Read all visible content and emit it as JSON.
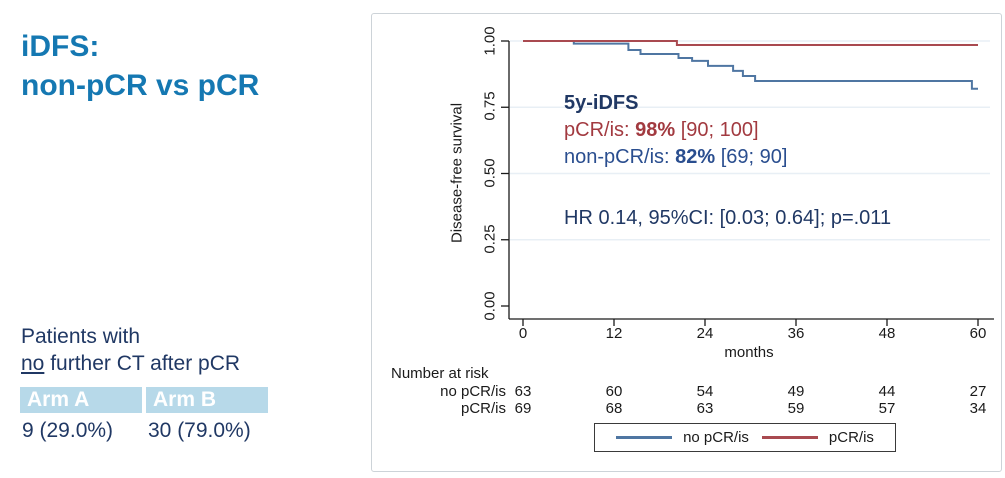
{
  "slide": {
    "title_line1": "iDFS:",
    "title_line2": "non-pCR vs pCR"
  },
  "left_panel": {
    "note_line1": "Patients with",
    "note_underline": "no",
    "note_rest": " further CT after pCR",
    "table": {
      "headers": [
        "Arm A",
        "Arm B"
      ],
      "values": [
        "9 (29.0%)",
        "30 (79.0%)"
      ]
    }
  },
  "chart": {
    "ylabel": "Disease-free survival",
    "xlabel": "months",
    "y_tick_labels": [
      "1.00",
      "0.75",
      "0.50",
      "0.25",
      "0.00"
    ],
    "x_tick_labels": [
      "0",
      "12",
      "24",
      "36",
      "48",
      "60"
    ],
    "annotation": {
      "heading": "5y-iDFS",
      "pcr_prefix": "pCR/is: ",
      "pcr_value": "98%",
      "pcr_ci": " [90; 100]",
      "nonpcr_prefix": "non-pCR/is: ",
      "nonpcr_value": "82%",
      "nonpcr_ci": " [69; 90]",
      "hr_line": "HR 0.14, 95%CI: [0.03; 0.64]; p=.011"
    },
    "risk_table": {
      "title": "Number at risk",
      "rows": [
        {
          "label": "no pCR/is",
          "values": [
            "63",
            "60",
            "54",
            "49",
            "44",
            "27"
          ]
        },
        {
          "label": "pCR/is",
          "values": [
            "69",
            "68",
            "63",
            "59",
            "57",
            "34"
          ]
        }
      ]
    },
    "legend": [
      {
        "label": "no pCR/is",
        "color": "#4f76a2"
      },
      {
        "label": "pCR/is",
        "color": "#a94a50"
      }
    ]
  },
  "chart_data": {
    "type": "line",
    "subtype": "kaplan-meier-step",
    "title": "iDFS: non-pCR vs pCR",
    "xlabel": "months",
    "ylabel": "Disease-free survival",
    "xlim": [
      0,
      60
    ],
    "ylim": [
      0.0,
      1.0
    ],
    "x_ticks": [
      0,
      12,
      24,
      36,
      48,
      60
    ],
    "y_ticks": [
      0.0,
      0.25,
      0.5,
      0.75,
      1.0
    ],
    "grid": "horizontal-light",
    "legend_position": "bottom",
    "colors": {
      "grid": "#e8eff5",
      "axis": "#1a1a1a",
      "accent_title": "#1578b2",
      "navy_text": "#203864",
      "red_text": "#a23a40"
    },
    "series": [
      {
        "name": "no pCR/is",
        "color": "#4f76a2",
        "step_points": [
          [
            0,
            1.0
          ],
          [
            6.7,
            1.0
          ],
          [
            6.7,
            0.99
          ],
          [
            13.9,
            0.99
          ],
          [
            13.9,
            0.966
          ],
          [
            15.5,
            0.966
          ],
          [
            15.5,
            0.951
          ],
          [
            20.5,
            0.951
          ],
          [
            20.5,
            0.936
          ],
          [
            22.3,
            0.936
          ],
          [
            22.3,
            0.925
          ],
          [
            24.4,
            0.925
          ],
          [
            24.4,
            0.906
          ],
          [
            27.7,
            0.906
          ],
          [
            27.7,
            0.887
          ],
          [
            29.0,
            0.887
          ],
          [
            29.0,
            0.868
          ],
          [
            30.6,
            0.868
          ],
          [
            30.6,
            0.849
          ],
          [
            59.2,
            0.849
          ],
          [
            59.2,
            0.82
          ],
          [
            60,
            0.82
          ]
        ]
      },
      {
        "name": "pCR/is",
        "color": "#a94a50",
        "step_points": [
          [
            0,
            1.0
          ],
          [
            20.3,
            1.0
          ],
          [
            20.3,
            0.985
          ],
          [
            60,
            0.985
          ]
        ]
      }
    ],
    "annotations": {
      "five_year_heading": "5y-iDFS",
      "pCR_is_5y": "98% [90; 100]",
      "non_pCR_is_5y": "82% [69; 90]",
      "hazard_ratio": "HR 0.14, 95%CI: [0.03; 0.64]; p=.011"
    },
    "number_at_risk": {
      "x": [
        0,
        12,
        24,
        36,
        48,
        60
      ],
      "no_pCR_is": [
        63,
        60,
        54,
        49,
        44,
        27
      ],
      "pCR_is": [
        69,
        68,
        63,
        59,
        57,
        34
      ]
    }
  }
}
